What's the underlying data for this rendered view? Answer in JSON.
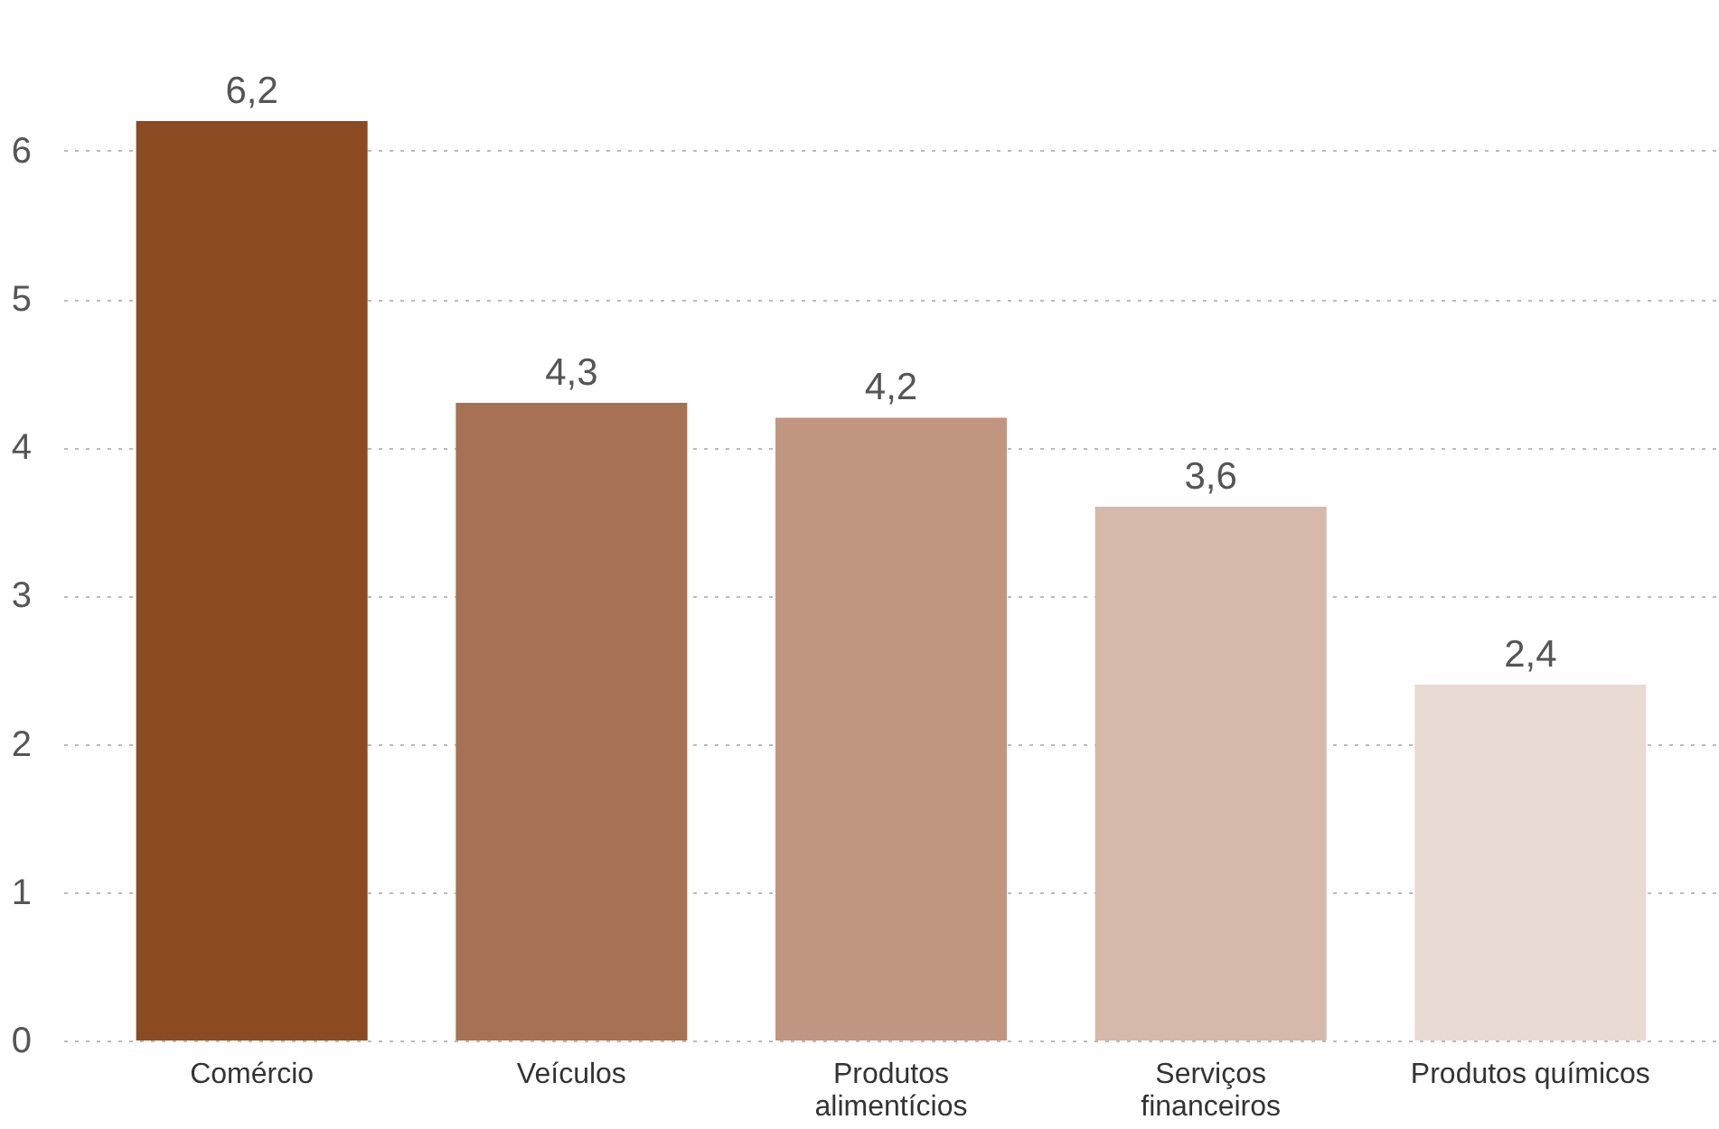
{
  "chart_data": {
    "type": "bar",
    "categories": [
      "Comércio",
      "Veículos",
      "Produtos alimentícios",
      "Serviços financeiros",
      "Produtos químicos"
    ],
    "values": [
      6.2,
      4.3,
      4.2,
      3.6,
      2.4
    ],
    "colors": [
      "#8b4a22",
      "#a67253",
      "#c09680",
      "#d5b9aa",
      "#e8dad2"
    ],
    "value_labels": [
      "6,2",
      "4,3",
      "4,2",
      "3,6",
      "2,4"
    ],
    "ylim": [
      0,
      6.2
    ],
    "yticks": [
      0,
      1,
      2,
      3,
      4,
      5,
      6
    ],
    "grid": "y"
  }
}
